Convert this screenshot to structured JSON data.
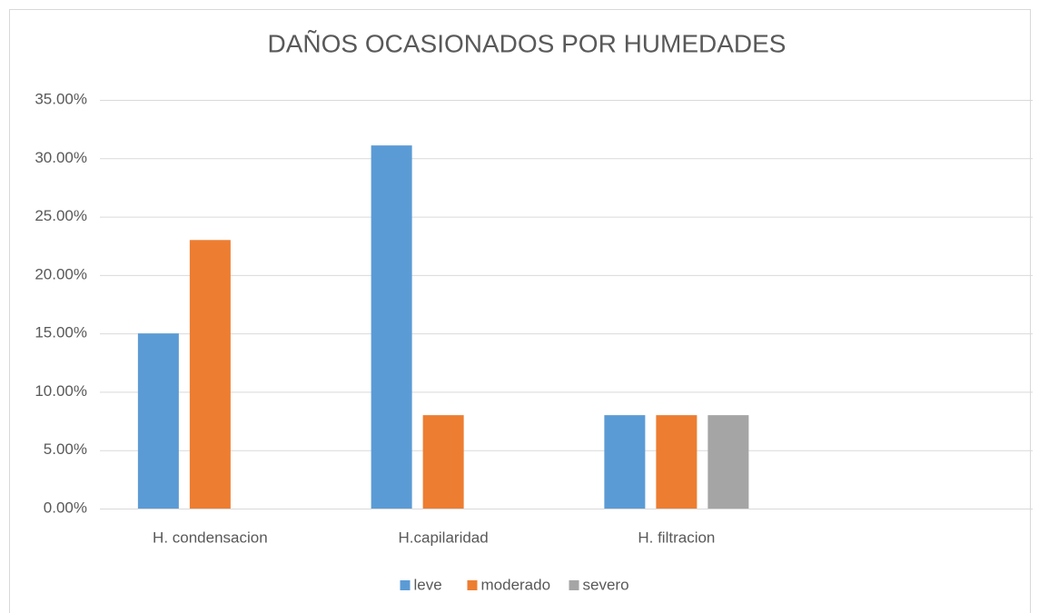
{
  "chart_data": {
    "type": "bar",
    "title": "DAÑOS OCASIONADOS POR HUMEDADES",
    "categories": [
      "H. condensacion",
      "H.capilaridad",
      "H. filtracion",
      null
    ],
    "series": [
      {
        "name": "leve",
        "color": "#5b9bd5",
        "values": [
          15,
          31.1,
          8,
          null
        ]
      },
      {
        "name": "moderado",
        "color": "#ed7d31",
        "values": [
          23,
          8,
          8,
          null
        ]
      },
      {
        "name": "severo",
        "color": "#a5a5a5",
        "values": [
          null,
          null,
          8,
          null
        ]
      }
    ],
    "ylim": [
      0,
      35
    ],
    "yticks": [
      {
        "value": 0,
        "label": "0.00%"
      },
      {
        "value": 5,
        "label": "5.00%"
      },
      {
        "value": 10,
        "label": "10.00%"
      },
      {
        "value": 15,
        "label": "15.00%"
      },
      {
        "value": 20,
        "label": "20.00%"
      },
      {
        "value": 25,
        "label": "25.00%"
      },
      {
        "value": 30,
        "label": "30.00%"
      },
      {
        "value": 35,
        "label": "35.00%"
      }
    ],
    "grid": true,
    "legend": "bottom"
  }
}
